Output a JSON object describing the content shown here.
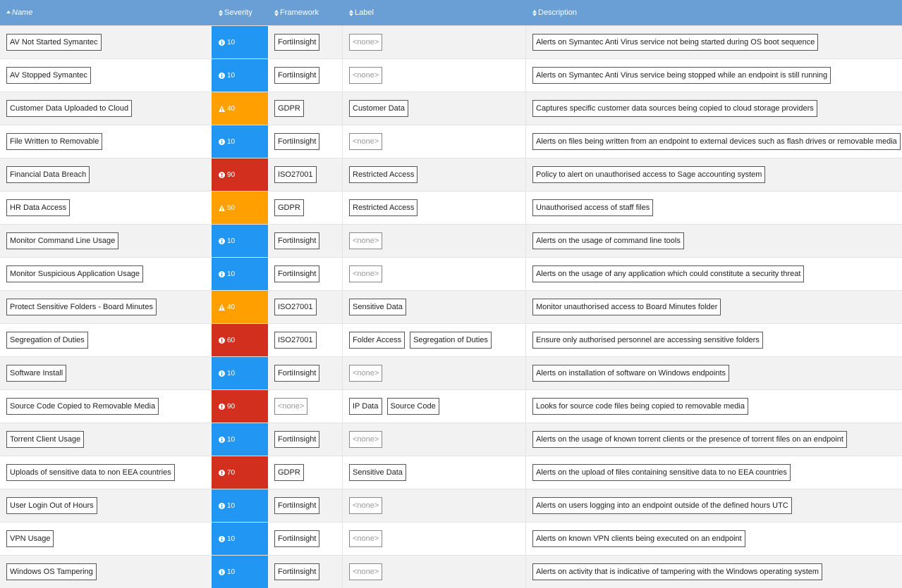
{
  "table": {
    "columns": [
      "Name",
      "Severity",
      "Framework",
      "Label",
      "Description"
    ],
    "none_text": "<none>",
    "rows": [
      {
        "name": "AV Not Started Symantec",
        "severity": 10,
        "color": "#2196f3",
        "framework": "FortiInsight",
        "labels": [],
        "description": "Alerts on Symantec Anti Virus service not being started during OS boot sequence"
      },
      {
        "name": "AV Stopped Symantec",
        "severity": 10,
        "color": "#2196f3",
        "framework": "FortiInsight",
        "labels": [],
        "description": "Alerts on Symantec Anti Virus service being stopped while an endpoint is still running"
      },
      {
        "name": "Customer Data Uploaded to Cloud",
        "severity": 40,
        "color": "#ffa000",
        "framework": "GDPR",
        "labels": [
          "Customer Data"
        ],
        "description": "Captures specific customer data sources being copied to cloud storage providers"
      },
      {
        "name": "File Written to Removable",
        "severity": 10,
        "color": "#2196f3",
        "framework": "FortiInsight",
        "labels": [],
        "description": "Alerts on files being written from an endpoint to external devices such as flash drives or removable media"
      },
      {
        "name": "Financial Data Breach",
        "severity": 90,
        "color": "#d32f1e",
        "framework": "ISO27001",
        "labels": [
          "Restricted Access"
        ],
        "description": "Policy to alert on unauthorised access to Sage accounting system"
      },
      {
        "name": "HR Data Access",
        "severity": 50,
        "color": "#ffa000",
        "framework": "GDPR",
        "labels": [
          "Restricted Access"
        ],
        "description": "Unauthorised access of staff files"
      },
      {
        "name": "Monitor Command Line Usage",
        "severity": 10,
        "color": "#2196f3",
        "framework": "FortiInsight",
        "labels": [],
        "description": "Alerts on the usage of command line tools"
      },
      {
        "name": "Monitor Suspicious Application Usage",
        "severity": 10,
        "color": "#2196f3",
        "framework": "FortiInsight",
        "labels": [],
        "description": "Alerts on the usage of any application which could constitute a security threat"
      },
      {
        "name": "Protect Sensitive Folders - Board Minutes",
        "severity": 40,
        "color": "#ffa000",
        "framework": "ISO27001",
        "labels": [
          "Sensitive Data"
        ],
        "description": "Monitor unauthorised access to Board Minutes folder"
      },
      {
        "name": "Segregation of Duties",
        "severity": 60,
        "color": "#d32f1e",
        "framework": "ISO27001",
        "labels": [
          "Folder Access",
          "Segregation of Duties"
        ],
        "description": "Ensure only authorised personnel are accessing sensitive folders"
      },
      {
        "name": "Software Install",
        "severity": 10,
        "color": "#2196f3",
        "framework": "FortiInsight",
        "labels": [],
        "description": "Alerts on installation of software on Windows endpoints"
      },
      {
        "name": "Source Code Copied to Removable Media",
        "severity": 90,
        "color": "#d32f1e",
        "framework": null,
        "labels": [
          "IP Data",
          "Source Code"
        ],
        "description": "Looks for source code files being copied to removable media"
      },
      {
        "name": "Torrent Client Usage",
        "severity": 10,
        "color": "#2196f3",
        "framework": "FortiInsight",
        "labels": [],
        "description": "Alerts on the usage of known torrent clients or the presence of torrent files on an endpoint"
      },
      {
        "name": "Uploads of sensitive data to non EEA countries",
        "severity": 70,
        "color": "#d32f1e",
        "framework": "GDPR",
        "labels": [
          "Sensitive Data"
        ],
        "description": "Alerts on the upload of files containing sensitive data to no EEA countries"
      },
      {
        "name": "User Login Out of Hours",
        "severity": 10,
        "color": "#2196f3",
        "framework": "FortiInsight",
        "labels": [],
        "description": "Alerts on users logging into an endpoint outside of the defined hours UTC"
      },
      {
        "name": "VPN Usage",
        "severity": 10,
        "color": "#2196f3",
        "framework": "FortiInsight",
        "labels": [],
        "description": "Alerts on known VPN clients being executed on an endpoint"
      },
      {
        "name": "Windows OS Tampering",
        "severity": 10,
        "color": "#2196f3",
        "framework": "FortiInsight",
        "labels": [],
        "description": "Alerts on activity that is indicative of tampering with the Windows operating system"
      }
    ]
  }
}
